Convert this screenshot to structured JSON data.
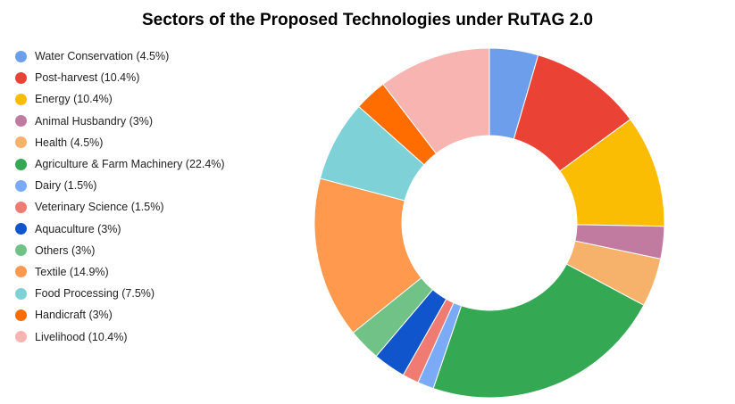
{
  "chart_data": {
    "type": "pie",
    "title": "Sectors of the Proposed Technologies under RuTAG 2.0",
    "legend_position": "left",
    "donut": true,
    "slices": [
      {
        "label": "Water Conservation (4.5%)",
        "value": 4.5,
        "color": "#6d9eeb"
      },
      {
        "label": "Post-harvest (10.4%)",
        "value": 10.4,
        "color": "#ea4335"
      },
      {
        "label": "Energy (10.4%)",
        "value": 10.4,
        "color": "#fbbc04"
      },
      {
        "label": "Animal Husbandry (3%)",
        "value": 3,
        "color": "#c27ba0"
      },
      {
        "label": "Health (4.5%)",
        "value": 4.5,
        "color": "#f6b26b"
      },
      {
        "label": "Agriculture & Farm Machinery (22.4%)",
        "value": 22.4,
        "color": "#34a853"
      },
      {
        "label": "Dairy (1.5%)",
        "value": 1.5,
        "color": "#7baaf7"
      },
      {
        "label": "Veterinary Science (1.5%)",
        "value": 1.5,
        "color": "#f07b72"
      },
      {
        "label": "Aquaculture (3%)",
        "value": 3,
        "color": "#1155cc"
      },
      {
        "label": "Others (3%)",
        "value": 3,
        "color": "#71c287"
      },
      {
        "label": "Textile (14.9%)",
        "value": 14.9,
        "color": "#ff994d"
      },
      {
        "label": "Food Processing (7.5%)",
        "value": 7.5,
        "color": "#7ed1d7"
      },
      {
        "label": "Handicraft (3%)",
        "value": 3,
        "color": "#ff6d01"
      },
      {
        "label": "Livelihood (10.4%)",
        "value": 10.4,
        "color": "#f7b4b1"
      }
    ]
  }
}
